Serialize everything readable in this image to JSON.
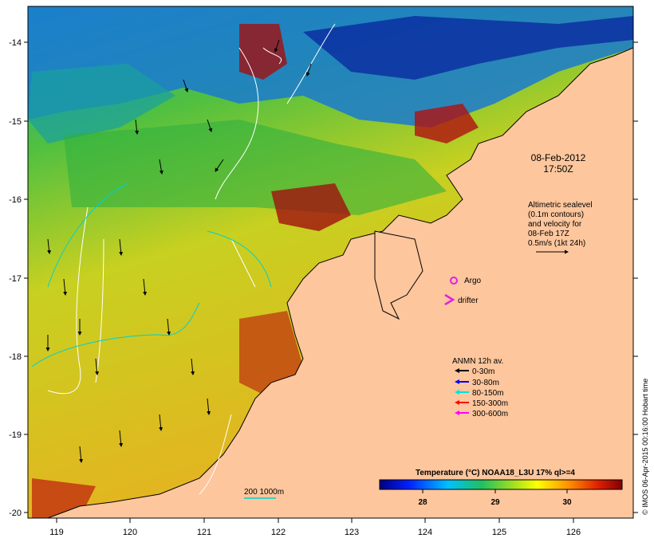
{
  "date": {
    "line1": "08-Feb-2012",
    "line2": "17:50Z"
  },
  "altimetry": {
    "lines": [
      "Altimetric sealevel",
      "(0.1m contours)",
      "and velocity for",
      "08-Feb 17Z"
    ],
    "scale_label": "0.5m/s (1kt 24h)"
  },
  "markers": {
    "argo_label": "Argo",
    "drifter_label": "drifter"
  },
  "anmn": {
    "title": "ANMN 12h av.",
    "items": [
      {
        "label": "0-30m",
        "color": "#000000"
      },
      {
        "label": "30-80m",
        "color": "#0000ff"
      },
      {
        "label": "80-150m",
        "color": "#00e0e0"
      },
      {
        "label": "150-300m",
        "color": "#ff0000"
      },
      {
        "label": "300-600m",
        "color": "#ff00ff"
      }
    ]
  },
  "colorbar": {
    "title": "Temperature (°C) NOAA18_L3U 17% ql>=4",
    "ticks": [
      "28",
      "29",
      "30"
    ]
  },
  "bathy_legend": "200  1000m",
  "axes": {
    "x_ticks": [
      "119",
      "120",
      "121",
      "122",
      "123",
      "124",
      "125",
      "126"
    ],
    "y_ticks": [
      "-14",
      "-15",
      "-16",
      "-17",
      "-18",
      "-19",
      "-20"
    ]
  },
  "credit": "© IMOS 06-Apr-2015 00:16:00 Hobart time",
  "colors": {
    "land": "#fdc69d",
    "argo": "#e020e0",
    "drifter": "#e020e0"
  }
}
